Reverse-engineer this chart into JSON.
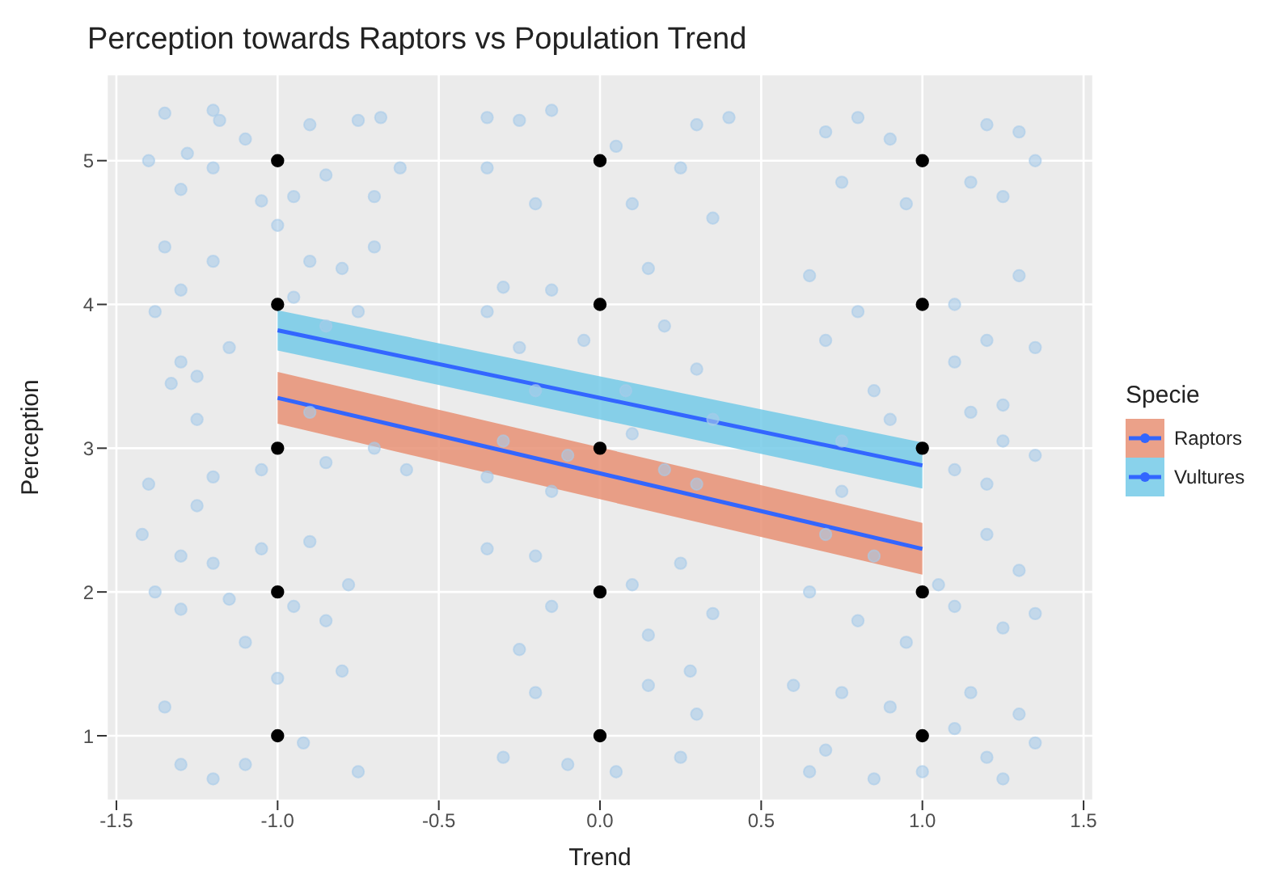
{
  "chart_data": {
    "type": "scatter",
    "title": "Perception towards Raptors vs Population Trend",
    "xlabel": "Trend",
    "ylabel": "Perception",
    "legend_title": "Specie",
    "xlim": [
      -1.53,
      1.53
    ],
    "xticks": [
      -1.5,
      {
        "value": -1,
        "label": "-1.0"
      },
      -0.5,
      {
        "value": 0,
        "label": "0.0"
      },
      0.5,
      {
        "value": 1,
        "label": "1.0"
      },
      1.5
    ],
    "ylim": [
      0.55,
      5.6
    ],
    "yticks": [
      1,
      2,
      3,
      4,
      5
    ],
    "grid": true,
    "legend": "right",
    "marker": "circle",
    "series": [
      {
        "color": "#a9cbea",
        "x": [
          -1.35,
          -1.2,
          -1.18,
          -1.28,
          -1.4,
          -1.2,
          -1.05,
          -0.9,
          -0.85,
          -0.75,
          -0.68,
          -0.7,
          -0.95,
          -1.3,
          -0.62,
          -1.1,
          -1.38,
          -1.3,
          -1.2,
          -1.35,
          -1.15,
          -1.3,
          -0.9,
          -0.8,
          -0.7,
          -0.95,
          -0.75,
          -1.0,
          -1.25,
          -0.85,
          -1.33,
          -1.25,
          -1.4,
          -1.2,
          -1.05,
          -0.85,
          -0.7,
          -0.6,
          -1.25,
          -0.9,
          -1.42,
          -1.3,
          -1.2,
          -1.05,
          -0.9,
          -0.78,
          -0.95,
          -1.15,
          -1.38,
          -0.85,
          -1.1,
          -1.3,
          -1.35,
          -1.3,
          -1.2,
          -1.0,
          -0.8,
          -0.92,
          -0.75,
          -1.1,
          -0.35,
          -0.25,
          -0.15,
          -0.35,
          -0.2,
          0.3,
          0.4,
          0.25,
          0.1,
          0.35,
          0.05,
          -0.3,
          -0.15,
          -0.35,
          -0.25,
          0.15,
          0.2,
          -0.05,
          0.3,
          0.08,
          -0.2,
          -0.3,
          -0.1,
          0.2,
          0.35,
          -0.15,
          0.3,
          -0.35,
          0.1,
          -0.35,
          -0.2,
          0.25,
          0.1,
          -0.15,
          0.35,
          0.15,
          -0.25,
          0.28,
          -0.2,
          0.15,
          -0.3,
          0.3,
          0.05,
          0.25,
          -0.1,
          0.7,
          0.8,
          0.9,
          1.2,
          1.3,
          1.35,
          0.75,
          0.95,
          1.15,
          1.25,
          0.65,
          0.8,
          0.7,
          1.1,
          1.3,
          1.35,
          1.2,
          1.1,
          0.85,
          1.25,
          0.75,
          0.9,
          1.15,
          1.25,
          1.35,
          1.2,
          0.75,
          1.1,
          0.7,
          0.85,
          1.2,
          1.3,
          1.1,
          0.8,
          1.25,
          0.95,
          1.35,
          0.65,
          1.05,
          0.6,
          0.75,
          0.9,
          1.15,
          1.3,
          0.7,
          0.85,
          1.0,
          1.2,
          1.35,
          0.65,
          1.1,
          1.25
        ],
        "values": [
          5.33,
          5.35,
          5.28,
          5.05,
          5.0,
          4.95,
          4.72,
          5.25,
          4.9,
          5.28,
          5.3,
          4.75,
          4.75,
          4.8,
          4.95,
          5.15,
          3.95,
          4.1,
          4.3,
          4.4,
          3.7,
          3.6,
          4.3,
          4.25,
          4.4,
          4.05,
          3.95,
          4.55,
          3.5,
          3.85,
          3.45,
          3.2,
          2.75,
          2.8,
          2.85,
          2.9,
          3.0,
          2.85,
          2.6,
          3.25,
          2.4,
          2.25,
          2.2,
          2.3,
          2.35,
          2.05,
          1.9,
          1.95,
          2.0,
          1.8,
          1.65,
          1.88,
          1.2,
          0.8,
          0.7,
          1.4,
          1.45,
          0.95,
          0.75,
          0.8,
          5.3,
          5.28,
          5.35,
          4.95,
          4.7,
          5.25,
          5.3,
          4.95,
          4.7,
          4.6,
          5.1,
          4.12,
          4.1,
          3.95,
          3.7,
          4.25,
          3.85,
          3.75,
          3.55,
          3.4,
          3.4,
          3.05,
          2.95,
          2.85,
          3.2,
          2.7,
          2.75,
          2.8,
          3.1,
          2.3,
          2.25,
          2.2,
          2.05,
          1.9,
          1.85,
          1.7,
          1.6,
          1.45,
          1.3,
          1.35,
          0.85,
          1.15,
          0.75,
          0.85,
          0.8,
          5.2,
          5.3,
          5.15,
          5.25,
          5.2,
          5.0,
          4.85,
          4.7,
          4.85,
          4.75,
          4.2,
          3.95,
          3.75,
          4.0,
          4.2,
          3.7,
          3.75,
          3.6,
          3.4,
          3.3,
          3.05,
          3.2,
          3.25,
          3.05,
          2.95,
          2.75,
          2.7,
          2.85,
          2.4,
          2.25,
          2.4,
          2.15,
          1.9,
          1.8,
          1.75,
          1.65,
          1.85,
          2.0,
          2.05,
          1.35,
          1.3,
          1.2,
          1.3,
          1.15,
          0.9,
          0.7,
          0.75,
          0.85,
          0.95,
          0.75,
          1.05,
          0.7
        ]
      },
      {
        "color": "#000000",
        "x": [
          -1,
          -1,
          -1,
          -1,
          -1,
          0,
          0,
          0,
          0,
          0,
          1,
          1,
          1,
          1,
          1
        ],
        "values": [
          1,
          2,
          3,
          4,
          5,
          1,
          2,
          3,
          4,
          5,
          1,
          2,
          3,
          4,
          5
        ]
      },
      {
        "type": "line",
        "name": "Raptors",
        "color": "#3366ff",
        "marker": "none",
        "x": [
          -1,
          1
        ],
        "values": [
          3.35,
          2.3
        ],
        "lower": [
          3.17,
          2.12
        ],
        "upper": [
          3.53,
          2.48
        ]
      },
      {
        "type": "line",
        "name": "Vultures",
        "color": "#3366ff",
        "marker": "none",
        "x": [
          -1,
          1
        ],
        "values": [
          3.82,
          2.88
        ],
        "lower": [
          3.68,
          2.72
        ],
        "upper": [
          3.96,
          3.04
        ]
      }
    ]
  }
}
